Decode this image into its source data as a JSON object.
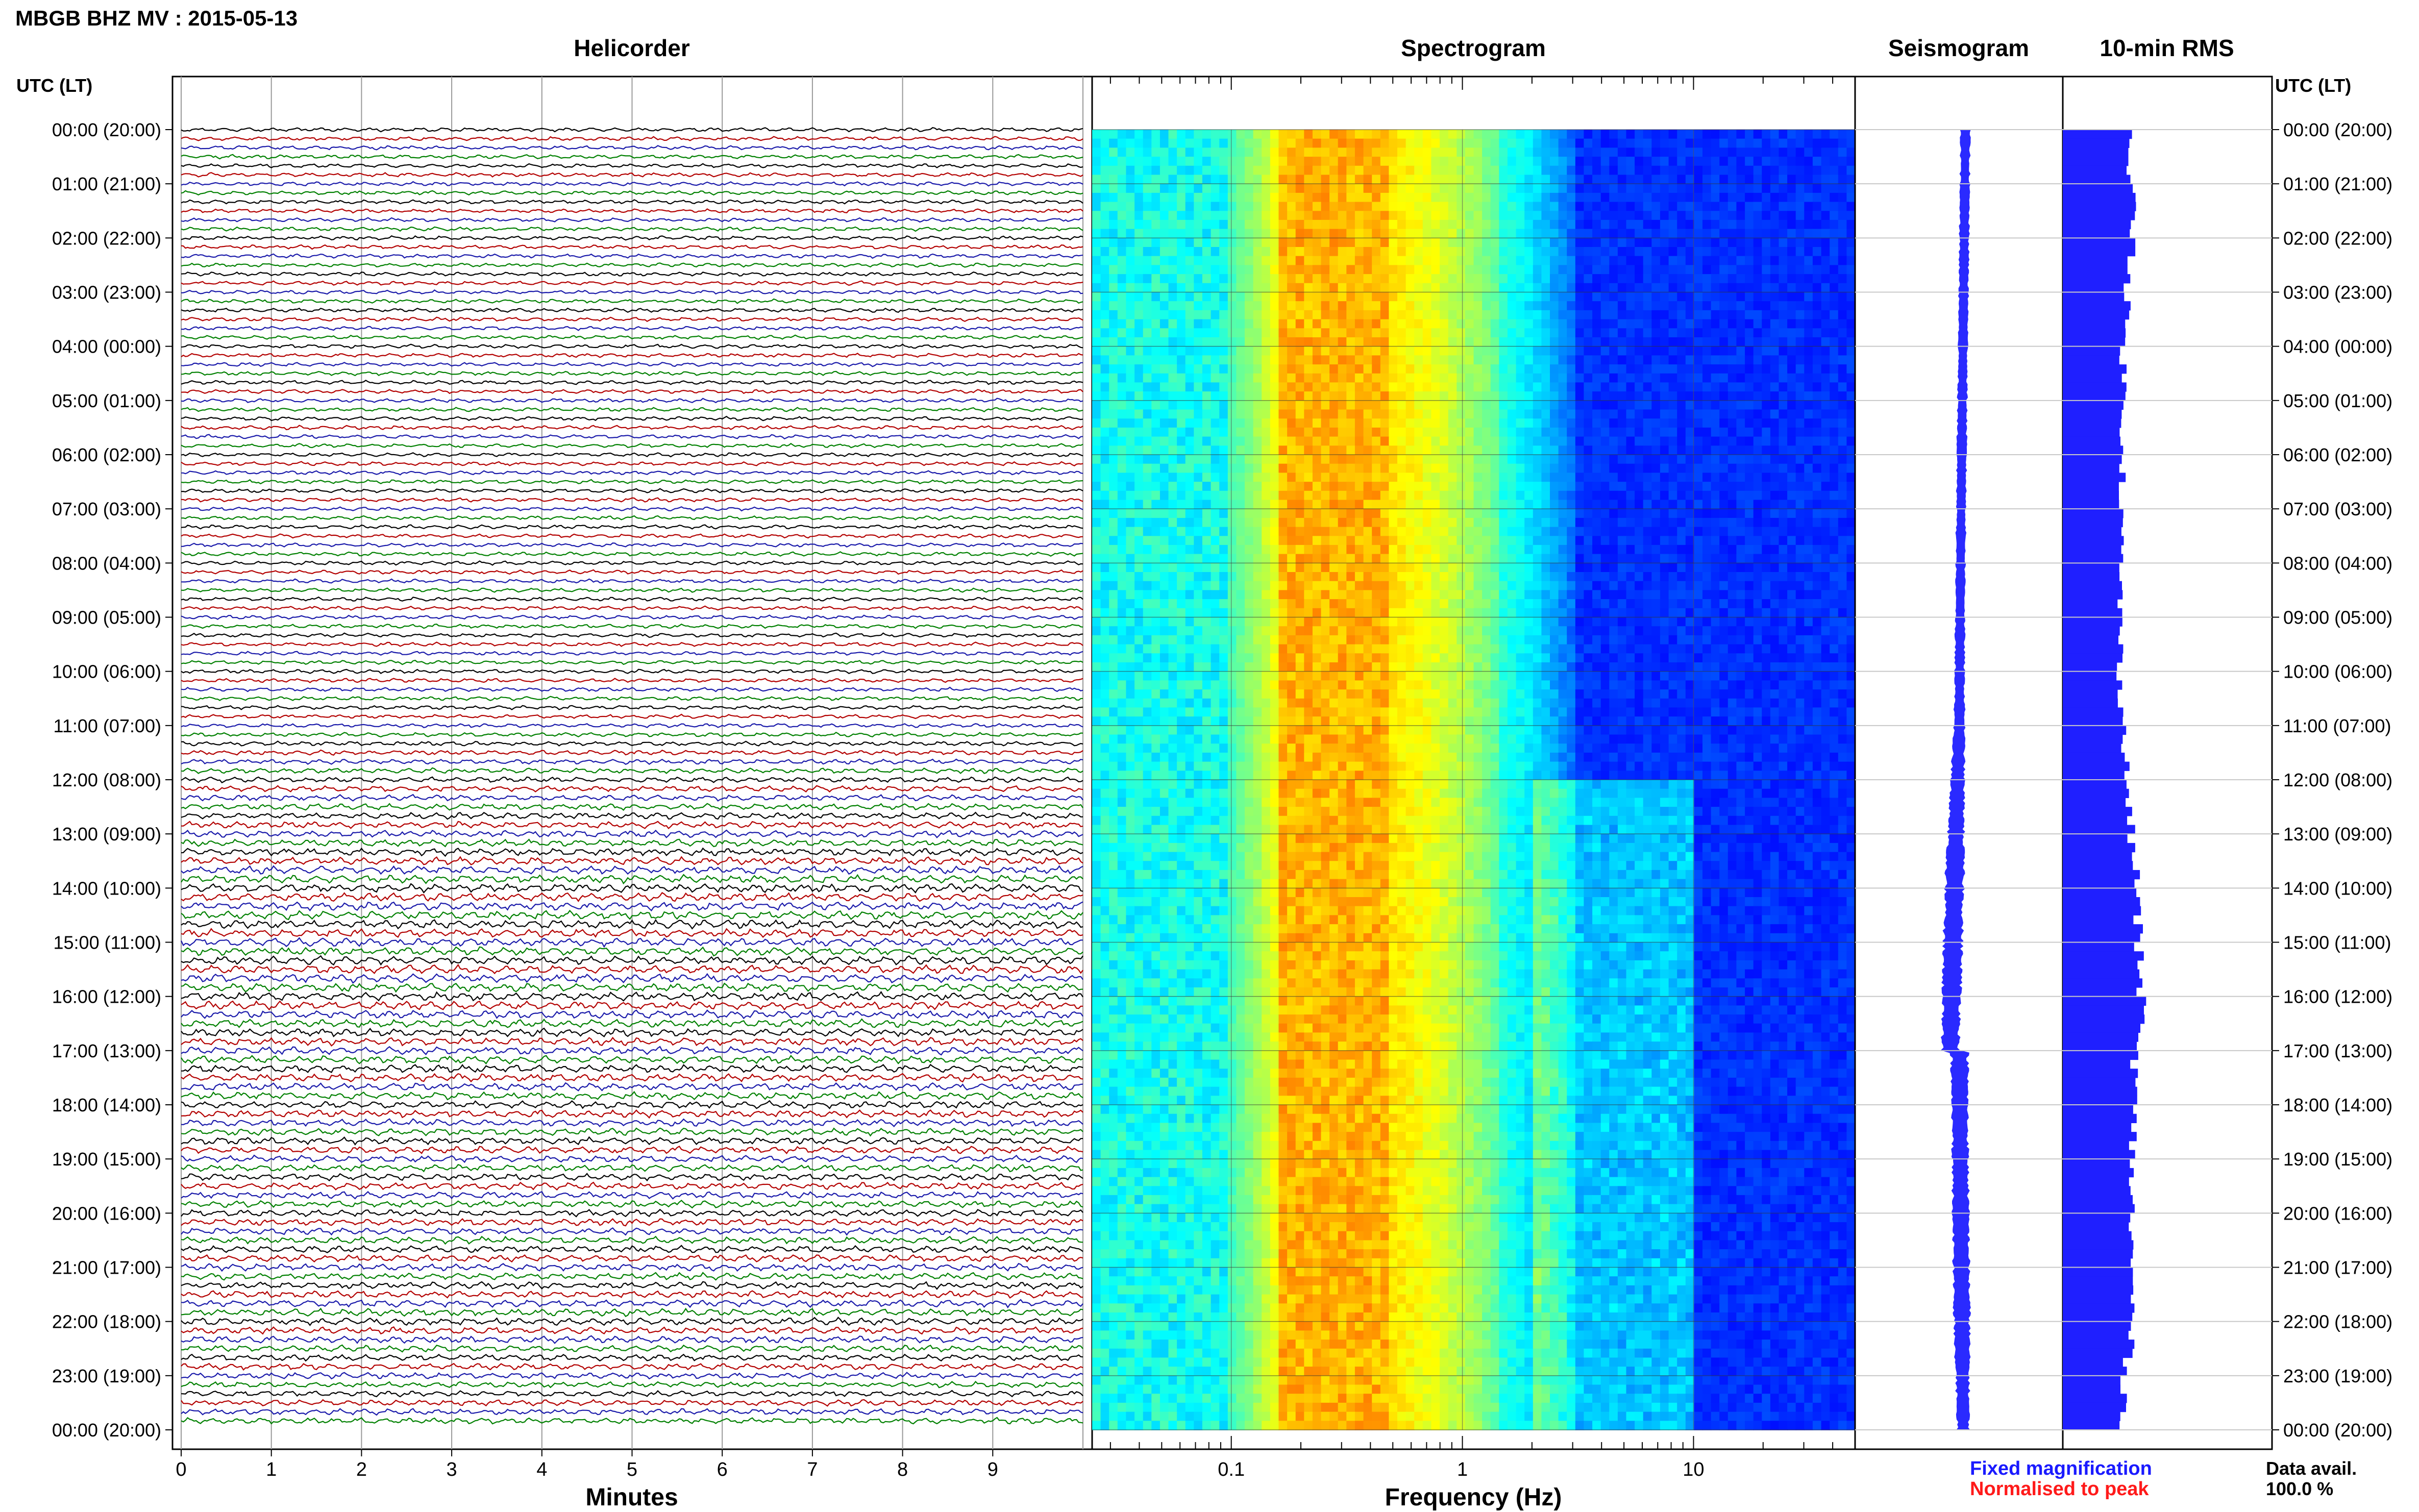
{
  "title": "MBGB BHZ MV : 2015-05-13",
  "panel_titles": {
    "helicorder": "Helicorder",
    "spectrogram": "Spectrogram",
    "seismogram": "Seismogram",
    "rms": "10-min RMS"
  },
  "left_axis_header": "UTC (LT)",
  "right_axis_header": "UTC (LT)",
  "hour_labels": [
    "00:00 (20:00)",
    "01:00 (21:00)",
    "02:00 (22:00)",
    "03:00 (23:00)",
    "04:00 (00:00)",
    "05:00 (01:00)",
    "06:00 (02:00)",
    "07:00 (03:00)",
    "08:00 (04:00)",
    "09:00 (05:00)",
    "10:00 (06:00)",
    "11:00 (07:00)",
    "12:00 (08:00)",
    "13:00 (09:00)",
    "14:00 (10:00)",
    "15:00 (11:00)",
    "16:00 (12:00)",
    "17:00 (13:00)",
    "18:00 (14:00)",
    "19:00 (15:00)",
    "20:00 (16:00)",
    "21:00 (17:00)",
    "22:00 (18:00)",
    "23:00 (19:00)",
    "00:00 (20:00)"
  ],
  "x_axes": {
    "helicorder": {
      "label": "Minutes",
      "ticks": [
        "0",
        "1",
        "2",
        "3",
        "4",
        "5",
        "6",
        "7",
        "8",
        "9"
      ]
    },
    "spectrogram": {
      "label": "Frequency (Hz)",
      "ticks": [
        "0.1",
        "1",
        "10"
      ],
      "scale": "log",
      "range": [
        0.025,
        50
      ]
    }
  },
  "legend": {
    "fixed": "Fixed magnification",
    "normalised": "Normalised to peak",
    "fixed_color": "#1a1aff",
    "normalised_color": "#ff1a1a"
  },
  "data_avail_label": "Data avail.",
  "data_avail_value": "100.0 %",
  "colors": {
    "trace_cycle": [
      "#000000",
      "#b30000",
      "#1a1aaa",
      "#008000"
    ],
    "rms_fill": "#1f1fff",
    "seismo_fill": "#2a2aff"
  },
  "chart_data": [
    {
      "type": "line",
      "title": "Helicorder",
      "xlabel": "Minutes",
      "xlim": [
        0,
        10
      ],
      "rows_per_hour": 6,
      "row_count": 144,
      "note_amplitude": "relative trace amplitude per hour, 0-24 UTC",
      "hourly_relative_amplitude": [
        0.4,
        0.4,
        0.4,
        0.4,
        0.4,
        0.4,
        0.4,
        0.4,
        0.4,
        0.4,
        0.4,
        0.4,
        0.55,
        0.7,
        0.85,
        0.85,
        0.85,
        0.8,
        0.75,
        0.7,
        0.7,
        0.7,
        0.75,
        0.6
      ]
    },
    {
      "type": "heatmap",
      "title": "Spectrogram",
      "xlabel": "Frequency (Hz)",
      "x_scale": "log",
      "xlim": [
        0.025,
        50
      ],
      "peak_band_hz": [
        0.18,
        0.45
      ],
      "secondary_activity_hz": [
        2,
        10
      ],
      "secondary_activity_hours_utc": [
        12,
        24
      ]
    },
    {
      "type": "area",
      "title": "Seismogram",
      "hourly_halfwidth_relative": [
        0.35,
        0.35,
        0.35,
        0.35,
        0.35,
        0.35,
        0.35,
        0.35,
        0.35,
        0.35,
        0.35,
        0.4,
        0.5,
        0.6,
        0.7,
        0.7,
        0.7,
        0.65,
        0.6,
        0.6,
        0.6,
        0.6,
        0.6,
        0.5,
        0.45
      ]
    },
    {
      "type": "bar",
      "title": "10-min RMS",
      "orientation": "horizontal",
      "bins": 144,
      "hourly_relative_rms": [
        0.6,
        0.62,
        0.65,
        0.58,
        0.55,
        0.55,
        0.55,
        0.53,
        0.52,
        0.52,
        0.52,
        0.55,
        0.58,
        0.62,
        0.68,
        0.68,
        0.72,
        0.66,
        0.64,
        0.63,
        0.62,
        0.62,
        0.63,
        0.56,
        0.55
      ]
    }
  ]
}
